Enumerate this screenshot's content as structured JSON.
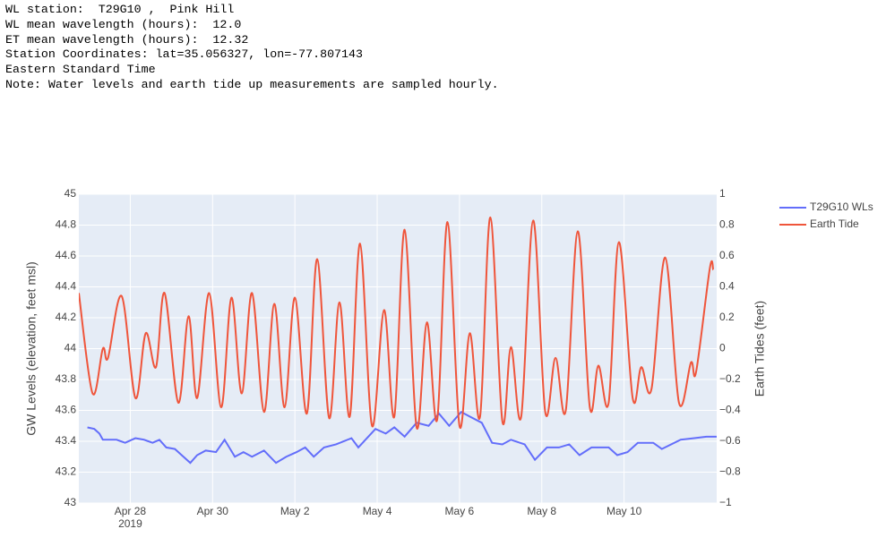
{
  "header": [
    "WL station:  T29G10 ,  Pink Hill",
    "WL mean wavelength (hours):  12.0",
    "ET mean wavelength (hours):  12.32",
    "Station Coordinates: lat=35.056327, lon=-77.807143",
    "Eastern Standard Time",
    "Note: Water levels and earth tide up measurements are sampled hourly."
  ],
  "chart_data": {
    "type": "line",
    "y_label": "GW Levels (elevation, feet msl)",
    "y2_label": "Earth Tides (feet)",
    "xlim": [
      "2019-04-26T18:00",
      "2019-05-12T06:00"
    ],
    "xticks": [
      {
        "value": "2019-04-28T00:00",
        "label": "Apr 28"
      },
      {
        "value": "2019-04-30T00:00",
        "label": "Apr 30"
      },
      {
        "value": "2019-05-02T00:00",
        "label": "May 2"
      },
      {
        "value": "2019-05-04T00:00",
        "label": "May 4"
      },
      {
        "value": "2019-05-06T00:00",
        "label": "May 6"
      },
      {
        "value": "2019-05-08T00:00",
        "label": "May 8"
      },
      {
        "value": "2019-05-10T00:00",
        "label": "May 10"
      }
    ],
    "xaxis_year": "2019",
    "ylim": [
      43,
      45
    ],
    "yticks": [
      43,
      43.2,
      43.4,
      43.6,
      43.8,
      44,
      44.2,
      44.4,
      44.6,
      44.8,
      45
    ],
    "y2lim": [
      -1,
      1
    ],
    "y2ticks": [
      {
        "value": -1,
        "label": "−1"
      },
      {
        "value": -0.8,
        "label": "−0.8"
      },
      {
        "value": -0.6,
        "label": "−0.6"
      },
      {
        "value": -0.4,
        "label": "−0.4"
      },
      {
        "value": -0.2,
        "label": "−0.2"
      },
      0,
      0.2,
      0.4,
      0.6,
      0.8,
      1
    ],
    "grid": true,
    "legend": "right",
    "series": [
      {
        "name": "T29G10 WLs",
        "color": "#636efa",
        "line_shape": "linear",
        "x": [
          "2019-04-26T23:00",
          "2019-04-27T03:00",
          "2019-04-27T06:00",
          "2019-04-27T08:00",
          "2019-04-27T16:00",
          "2019-04-27T21:00",
          "2019-04-28T03:00",
          "2019-04-28T08:00",
          "2019-04-28T13:00",
          "2019-04-28T17:00",
          "2019-04-28T21:00",
          "2019-04-29T02:00",
          "2019-04-29T07:00",
          "2019-04-29T11:00",
          "2019-04-29T15:00",
          "2019-04-29T20:00",
          "2019-04-30T02:00",
          "2019-04-30T07:00",
          "2019-04-30T13:00",
          "2019-04-30T18:00",
          "2019-04-30T23:00",
          "2019-05-01T06:00",
          "2019-05-01T13:00",
          "2019-05-01T19:00",
          "2019-05-02T01:00",
          "2019-05-02T06:00",
          "2019-05-02T11:00",
          "2019-05-02T17:00",
          "2019-05-03T00:00",
          "2019-05-03T09:00",
          "2019-05-03T13:00",
          "2019-05-03T18:00",
          "2019-05-03T23:00",
          "2019-05-04T05:00",
          "2019-05-04T10:00",
          "2019-05-04T16:00",
          "2019-05-04T23:00",
          "2019-05-05T06:00",
          "2019-05-05T12:00",
          "2019-05-05T18:00",
          "2019-05-06T01:00",
          "2019-05-06T06:00",
          "2019-05-06T13:00",
          "2019-05-06T19:00",
          "2019-05-07T01:00",
          "2019-05-07T06:00",
          "2019-05-07T14:00",
          "2019-05-07T20:00",
          "2019-05-08T03:00",
          "2019-05-08T10:00",
          "2019-05-08T16:00",
          "2019-05-08T22:00",
          "2019-05-09T05:00",
          "2019-05-09T15:00",
          "2019-05-09T20:00",
          "2019-05-10T02:00",
          "2019-05-10T08:00",
          "2019-05-10T17:00",
          "2019-05-10T22:00",
          "2019-05-11T09:00",
          "2019-05-11T17:00",
          "2019-05-12T00:00",
          "2019-05-12T06:00"
        ],
        "values": [
          43.49,
          43.48,
          43.45,
          43.41,
          43.41,
          43.39,
          43.42,
          43.41,
          43.39,
          43.41,
          43.36,
          43.35,
          43.3,
          43.26,
          43.31,
          43.34,
          43.33,
          43.41,
          43.3,
          43.33,
          43.3,
          43.34,
          43.26,
          43.3,
          43.33,
          43.36,
          43.3,
          43.36,
          43.38,
          43.42,
          43.36,
          43.42,
          43.48,
          43.45,
          43.49,
          43.43,
          43.52,
          43.5,
          43.58,
          43.5,
          43.59,
          43.56,
          43.52,
          43.39,
          43.38,
          43.41,
          43.38,
          43.28,
          43.36,
          43.36,
          43.38,
          43.31,
          43.36,
          43.36,
          43.31,
          43.33,
          43.39,
          43.39,
          43.35,
          43.41,
          43.42,
          43.43,
          43.43
        ]
      },
      {
        "name": "Earth Tide",
        "color": "#ef553b",
        "axis": "y2",
        "line_shape": "spline",
        "x": [
          "2019-04-26T18:00",
          "2019-04-27T02:00",
          "2019-04-27T08:00",
          "2019-04-27T11:00",
          "2019-04-27T19:00",
          "2019-04-28T03:00",
          "2019-04-28T09:00",
          "2019-04-28T15:00",
          "2019-04-28T20:00",
          "2019-04-29T04:00",
          "2019-04-29T10:00",
          "2019-04-29T15:00",
          "2019-04-29T22:00",
          "2019-04-30T05:00",
          "2019-04-30T11:00",
          "2019-04-30T17:00",
          "2019-04-30T23:00",
          "2019-05-01T06:00",
          "2019-05-01T12:00",
          "2019-05-01T18:00",
          "2019-05-02T00:00",
          "2019-05-02T07:00",
          "2019-05-02T13:00",
          "2019-05-02T20:00",
          "2019-05-03T02:00",
          "2019-05-03T08:00",
          "2019-05-03T14:00",
          "2019-05-03T21:00",
          "2019-05-04T04:00",
          "2019-05-04T10:00",
          "2019-05-04T16:00",
          "2019-05-04T23:00",
          "2019-05-05T05:00",
          "2019-05-05T11:00",
          "2019-05-05T17:00",
          "2019-05-06T00:00",
          "2019-05-06T06:00",
          "2019-05-06T12:00",
          "2019-05-06T18:00",
          "2019-05-07T01:00",
          "2019-05-07T06:00",
          "2019-05-07T12:00",
          "2019-05-07T19:00",
          "2019-05-08T02:00",
          "2019-05-08T08:00",
          "2019-05-08T14:00",
          "2019-05-08T21:00",
          "2019-05-09T04:00",
          "2019-05-09T09:00",
          "2019-05-09T15:00",
          "2019-05-09T21:00",
          "2019-05-10T05:00",
          "2019-05-10T10:00",
          "2019-05-10T16:00",
          "2019-05-11T00:00",
          "2019-05-11T08:00",
          "2019-05-11T15:00",
          "2019-05-11T18:00",
          "2019-05-12T02:00",
          "2019-05-12T04:00"
        ],
        "values": [
          0.36,
          -0.29,
          0,
          -0.06,
          0.34,
          -0.32,
          0.1,
          -0.12,
          0.36,
          -0.35,
          0.21,
          -0.32,
          0.36,
          -0.38,
          0.33,
          -0.29,
          0.36,
          -0.41,
          0.29,
          -0.38,
          0.33,
          -0.42,
          0.58,
          -0.45,
          0.3,
          -0.44,
          0.68,
          -0.5,
          0.25,
          -0.44,
          0.77,
          -0.51,
          0.17,
          -0.46,
          0.82,
          -0.5,
          0.1,
          -0.44,
          0.85,
          -0.47,
          0.01,
          -0.44,
          0.83,
          -0.41,
          -0.06,
          -0.4,
          0.76,
          -0.38,
          -0.11,
          -0.35,
          0.69,
          -0.32,
          -0.12,
          -0.26,
          0.59,
          -0.35,
          -0.09,
          -0.15,
          0.52,
          0.51
        ]
      }
    ]
  }
}
